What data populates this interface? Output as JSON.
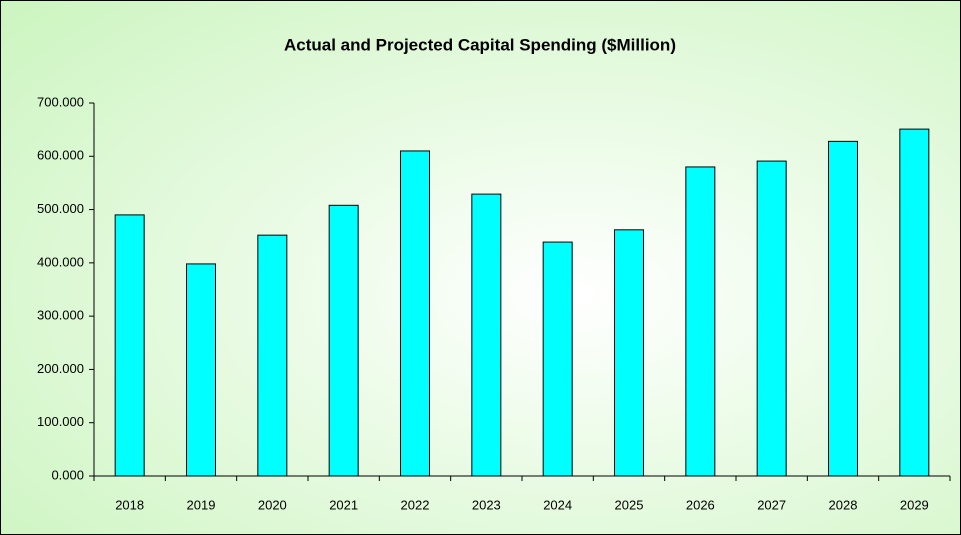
{
  "chart_data": {
    "type": "bar",
    "title": "Actual and Projected Capital Spending ($Million)",
    "categories": [
      "2018",
      "2019",
      "2020",
      "2021",
      "2022",
      "2023",
      "2024",
      "2025",
      "2026",
      "2027",
      "2028",
      "2029"
    ],
    "values": [
      490,
      398,
      452,
      508,
      610,
      529,
      439,
      462,
      580,
      591,
      628,
      651
    ],
    "color": "#00ffff",
    "ylim": [
      0,
      700
    ],
    "yticks": [
      {
        "value": 0,
        "label": "0.000"
      },
      {
        "value": 100,
        "label": "100.000"
      },
      {
        "value": 200,
        "label": "200.000"
      },
      {
        "value": 300,
        "label": "300.000"
      },
      {
        "value": 400,
        "label": "400.000"
      },
      {
        "value": 500,
        "label": "500.000"
      },
      {
        "value": 600,
        "label": "600.000"
      },
      {
        "value": 700,
        "label": "700.000"
      }
    ],
    "grid": false
  }
}
